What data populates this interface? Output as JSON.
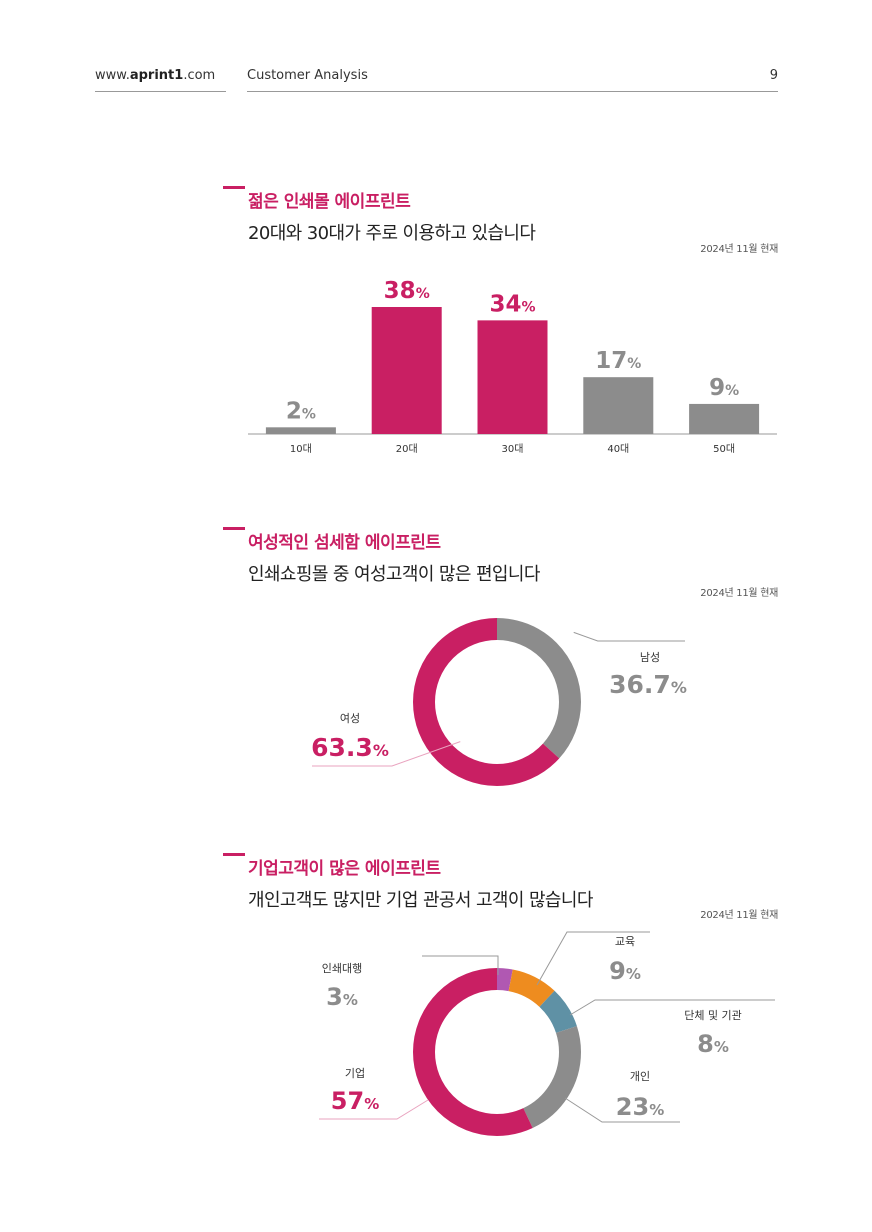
{
  "header": {
    "site_prefix": "www.",
    "site_brand": "aprint1",
    "site_suffix": ".com",
    "title": "Customer Analysis",
    "page": "9"
  },
  "colors": {
    "accent": "#c91f63",
    "gray": "#8c8c8c",
    "orange": "#ee8c1f",
    "teal": "#5f91a5",
    "purple": "#b058b2"
  },
  "sections": [
    {
      "title": "젊은 인쇄몰 에이프린트",
      "subtitle": "20대와 30대가 주로 이용하고 있습니다",
      "as_of": "2024년 11월 현재"
    },
    {
      "title": "여성적인 섬세함 에이프린트",
      "subtitle": "인쇄쇼핑몰 중 여성고객이 많은 편입니다",
      "as_of": "2024년 11월 현재"
    },
    {
      "title": "기업고객이 많은 에이프린트",
      "subtitle": "개인고객도 많지만 기업 관공서 고객이 많습니다",
      "as_of": "2024년 11월 현재"
    }
  ],
  "chart_data": [
    {
      "type": "bar",
      "categories": [
        "10대",
        "20대",
        "30대",
        "40대",
        "50대"
      ],
      "values": [
        2,
        38,
        34,
        17,
        9
      ],
      "unit": "%",
      "highlight": [
        false,
        true,
        true,
        false,
        false
      ]
    },
    {
      "type": "pie",
      "style": "donut",
      "slices": [
        {
          "label": "남성",
          "value": 36.7,
          "value_text": "36.7",
          "unit": "%",
          "color": "#8c8c8c"
        },
        {
          "label": "여성",
          "value": 63.3,
          "value_text": "63.3",
          "unit": "%",
          "color": "#c91f63"
        }
      ]
    },
    {
      "type": "pie",
      "style": "donut",
      "slices": [
        {
          "label": "인쇄대행",
          "value": 3,
          "value_text": "3",
          "unit": "%",
          "color": "#b058b2"
        },
        {
          "label": "교육",
          "value": 9,
          "value_text": "9",
          "unit": "%",
          "color": "#ee8c1f"
        },
        {
          "label": "단체 및 기관",
          "value": 8,
          "value_text": "8",
          "unit": "%",
          "color": "#5f91a5"
        },
        {
          "label": "개인",
          "value": 23,
          "value_text": "23",
          "unit": "%",
          "color": "#8c8c8c"
        },
        {
          "label": "기업",
          "value": 57,
          "value_text": "57",
          "unit": "%",
          "color": "#c91f63"
        }
      ]
    }
  ]
}
